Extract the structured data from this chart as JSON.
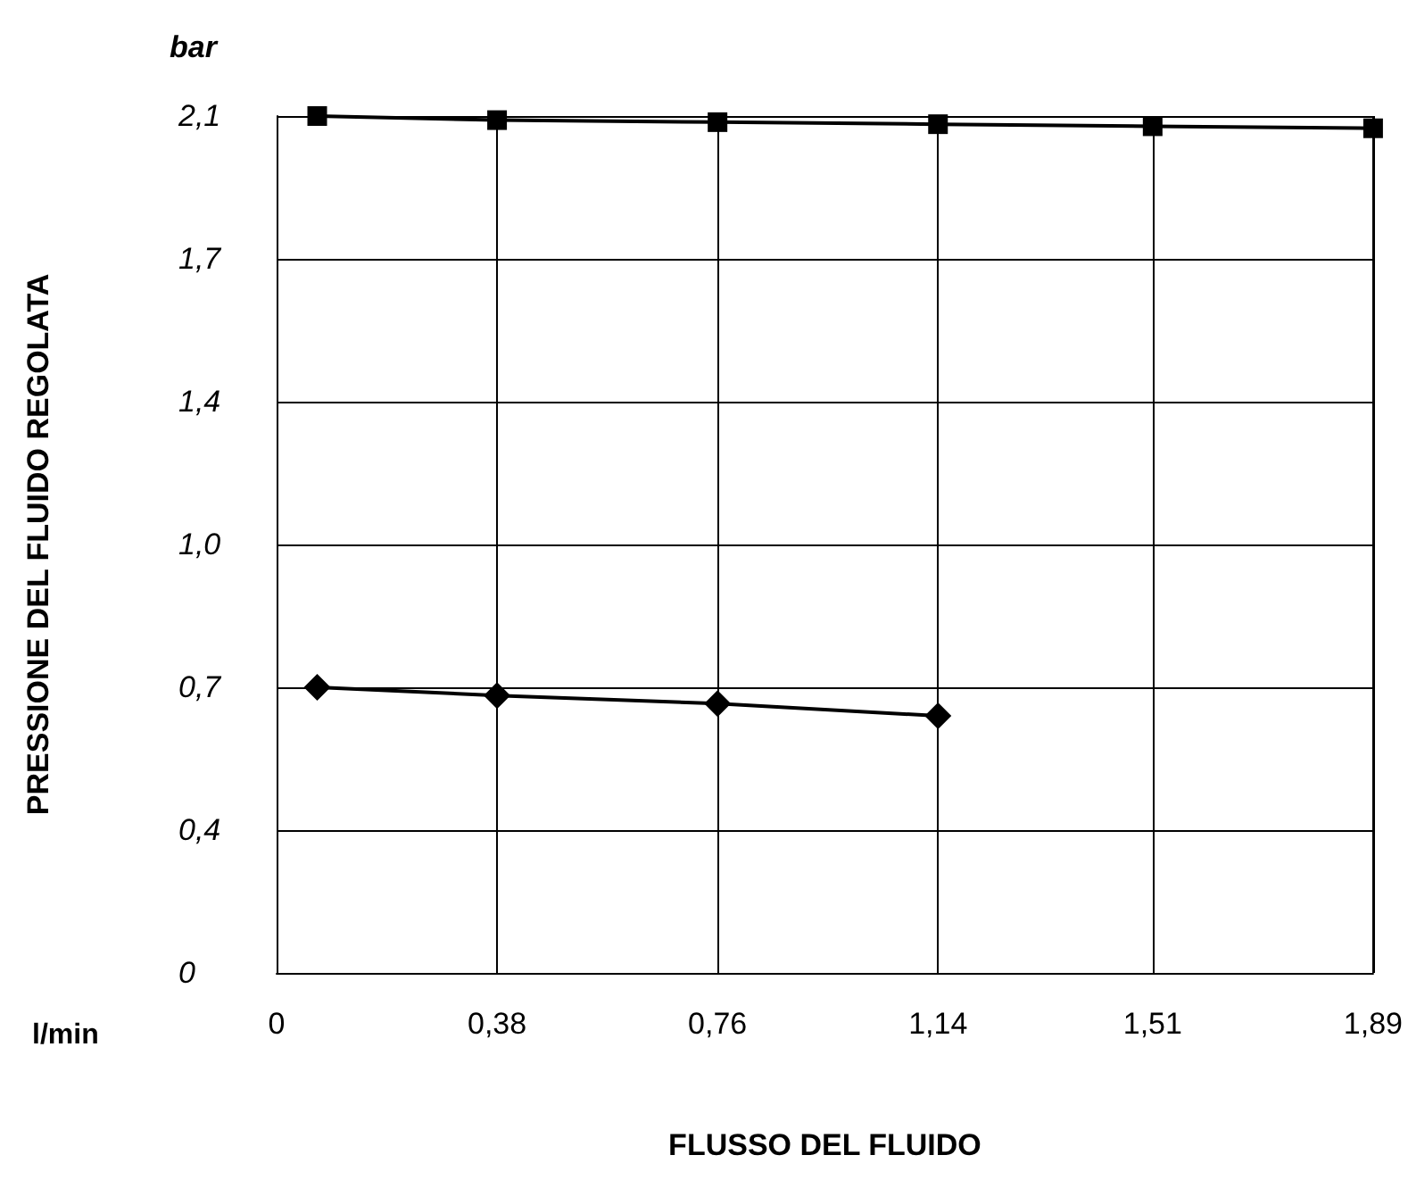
{
  "chart_data": {
    "type": "line",
    "xlabel": "FLUSSO DEL FLUIDO",
    "ylabel": "PRESSIONE DEL FLUIDO REGOLATA",
    "annotations": [
      "bar",
      "l/min"
    ],
    "xlim": [
      0,
      1.89
    ],
    "xticks": [
      {
        "value": 0,
        "label": "0"
      },
      {
        "value": 0.38,
        "label": "0,38"
      },
      {
        "value": 0.76,
        "label": "0,76"
      },
      {
        "value": 1.14,
        "label": "1,14"
      },
      {
        "value": 1.51,
        "label": "1,51"
      },
      {
        "value": 1.89,
        "label": "1,89"
      }
    ],
    "ylim": [
      0,
      2.1
    ],
    "yticks": [
      {
        "value": 0,
        "label": "0"
      },
      {
        "value": 0.35,
        "label": "0,4"
      },
      {
        "value": 0.7,
        "label": "0,7"
      },
      {
        "value": 1.05,
        "label": "1,0"
      },
      {
        "value": 1.4,
        "label": "1,4"
      },
      {
        "value": 1.75,
        "label": "1,7"
      },
      {
        "value": 2.1,
        "label": "2,1"
      }
    ],
    "grid": true,
    "series": [
      {
        "color": "#000000",
        "marker": "square",
        "x": [
          0.07,
          0.38,
          0.76,
          1.14,
          1.51,
          1.89
        ],
        "values": [
          2.1,
          2.09,
          2.085,
          2.08,
          2.075,
          2.07
        ]
      },
      {
        "color": "#000000",
        "marker": "diamond",
        "x": [
          0.07,
          0.38,
          0.76,
          1.14
        ],
        "values": [
          0.7,
          0.68,
          0.66,
          0.63
        ]
      }
    ]
  }
}
